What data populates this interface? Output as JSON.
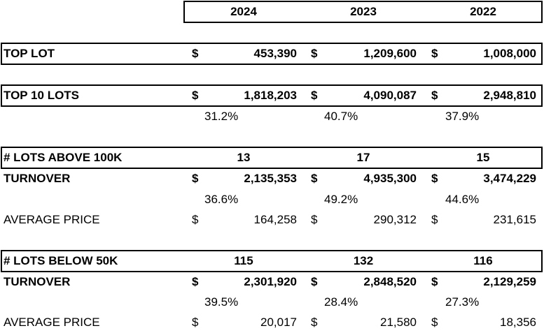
{
  "currency": "$",
  "header": {
    "years": [
      "2024",
      "2023",
      "2022"
    ]
  },
  "top_lot": {
    "label": "TOP LOT",
    "values": [
      "453,390",
      "1,209,600",
      "1,008,000"
    ]
  },
  "top_10_lots": {
    "label": "TOP 10 LOTS",
    "values": [
      "1,818,203",
      "4,090,087",
      "2,948,810"
    ],
    "shares": [
      "31.2%",
      "40.7%",
      "37.9%"
    ]
  },
  "lots_above_100k": {
    "label": "# LOTS ABOVE 100K",
    "counts": [
      "13",
      "17",
      "15"
    ],
    "turnover": {
      "label": "TURNOVER",
      "values": [
        "2,135,353",
        "4,935,300",
        "3,474,229"
      ],
      "shares": [
        "36.6%",
        "49.2%",
        "44.6%"
      ]
    },
    "average_price": {
      "label": "AVERAGE PRICE",
      "values": [
        "164,258",
        "290,312",
        "231,615"
      ]
    }
  },
  "lots_below_50k": {
    "label": "# LOTS BELOW 50K",
    "counts": [
      "115",
      "132",
      "116"
    ],
    "turnover": {
      "label": "TURNOVER",
      "values": [
        "2,301,920",
        "2,848,520",
        "2,129,259"
      ],
      "shares": [
        "39.5%",
        "28.4%",
        "27.3%"
      ]
    },
    "average_price": {
      "label": "AVERAGE PRICE",
      "values": [
        "20,017",
        "21,580",
        "18,356"
      ]
    }
  }
}
